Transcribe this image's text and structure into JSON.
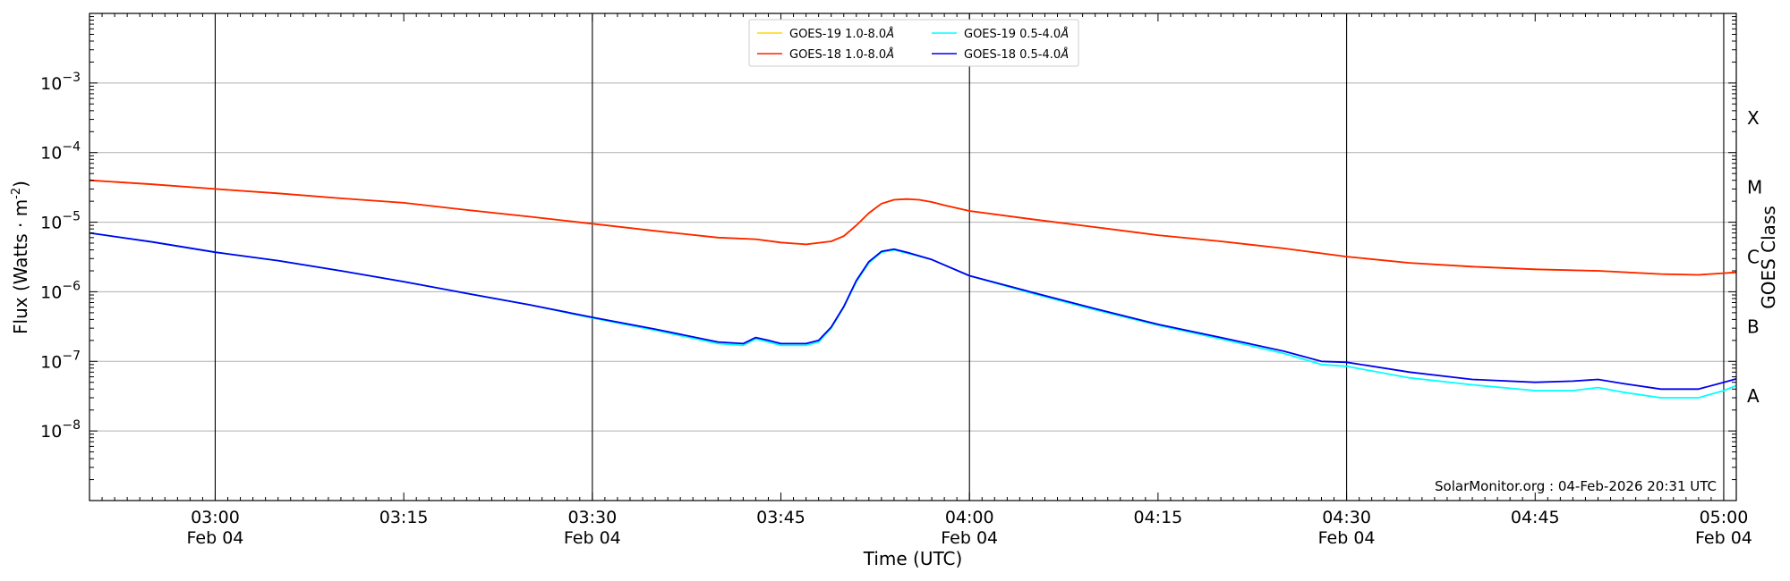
{
  "chart_data": {
    "type": "line",
    "xlabel": "Time (UTC)",
    "ylabel": "Flux (Watts · m",
    "ylabel_sup": "-2",
    "ylabel_end": ")",
    "right_label": "GOES Class",
    "y_scale": "log",
    "ylim": [
      1e-09,
      0.01
    ],
    "xlim": [
      "02:50",
      "05:01"
    ],
    "grid": {
      "horizontal": true,
      "vertical_at_labeled_half_hours": true
    },
    "x_ticks": [
      {
        "time": "03:00",
        "date": "Feb 04"
      },
      {
        "time": "03:15",
        "date": ""
      },
      {
        "time": "03:30",
        "date": "Feb 04"
      },
      {
        "time": "03:45",
        "date": ""
      },
      {
        "time": "04:00",
        "date": "Feb 04"
      },
      {
        "time": "04:15",
        "date": ""
      },
      {
        "time": "04:30",
        "date": "Feb 04"
      },
      {
        "time": "04:45",
        "date": ""
      },
      {
        "time": "05:00",
        "date": "Feb 04"
      }
    ],
    "vertical_lines": [
      "03:00",
      "03:30",
      "04:00",
      "04:30",
      "05:00"
    ],
    "y_ticks": [
      {
        "value": 0.001,
        "mantissa": "10",
        "exp": "−3"
      },
      {
        "value": 0.0001,
        "mantissa": "10",
        "exp": "−4"
      },
      {
        "value": 1e-05,
        "mantissa": "10",
        "exp": "−5"
      },
      {
        "value": 1e-06,
        "mantissa": "10",
        "exp": "−6"
      },
      {
        "value": 1e-07,
        "mantissa": "10",
        "exp": "−7"
      },
      {
        "value": 1e-08,
        "mantissa": "10",
        "exp": "−8"
      }
    ],
    "goes_classes": [
      {
        "label": "X",
        "value": 0.000316
      },
      {
        "label": "M",
        "value": 3.16e-05
      },
      {
        "label": "C",
        "value": 3.16e-06
      },
      {
        "label": "B",
        "value": 3.16e-07
      },
      {
        "label": "A",
        "value": 3.16e-08
      }
    ],
    "legend_placement": "top-center",
    "legend": [
      {
        "name": "GOES-19 1.0-8.0",
        "unit": "Å",
        "color": "#ffd700"
      },
      {
        "name": "GOES-19 0.5-4.0",
        "unit": "Å",
        "color": "#00ffff"
      },
      {
        "name": "GOES-18 1.0-8.0",
        "unit": "Å",
        "color": "#ff2200"
      },
      {
        "name": "GOES-18 0.5-4.0",
        "unit": "Å",
        "color": "#0000ee"
      }
    ],
    "credit": "SolarMonitor.org : 04-Feb-2026 20:31 UTC",
    "series": [
      {
        "name": "GOES-19 1.0-8.0Å",
        "color": "#ffd700",
        "points": [
          [
            "02:50",
            4e-05
          ],
          [
            "02:55",
            3.5e-05
          ],
          [
            "03:00",
            3e-05
          ],
          [
            "03:05",
            2.6e-05
          ],
          [
            "03:10",
            2.2e-05
          ],
          [
            "03:15",
            1.9e-05
          ],
          [
            "03:20",
            1.5e-05
          ],
          [
            "03:25",
            1.2e-05
          ],
          [
            "03:30",
            9.5e-06
          ],
          [
            "03:35",
            7.5e-06
          ],
          [
            "03:40",
            6e-06
          ],
          [
            "03:43",
            5.7e-06
          ],
          [
            "03:45",
            5.1e-06
          ],
          [
            "03:47",
            4.8e-06
          ],
          [
            "03:49",
            5.3e-06
          ],
          [
            "03:50",
            6.3e-06
          ],
          [
            "03:51",
            9e-06
          ],
          [
            "03:52",
            1.35e-05
          ],
          [
            "03:53",
            1.85e-05
          ],
          [
            "03:54",
            2.1e-05
          ],
          [
            "03:55",
            2.15e-05
          ],
          [
            "03:56",
            2.1e-05
          ],
          [
            "03:57",
            1.95e-05
          ],
          [
            "03:58",
            1.75e-05
          ],
          [
            "04:00",
            1.45e-05
          ],
          [
            "04:05",
            1.1e-05
          ],
          [
            "04:10",
            8.5e-06
          ],
          [
            "04:15",
            6.5e-06
          ],
          [
            "04:20",
            5.3e-06
          ],
          [
            "04:25",
            4.2e-06
          ],
          [
            "04:30",
            3.2e-06
          ],
          [
            "04:35",
            2.6e-06
          ],
          [
            "04:40",
            2.3e-06
          ],
          [
            "04:45",
            2.1e-06
          ],
          [
            "04:50",
            2e-06
          ],
          [
            "04:55",
            1.8e-06
          ],
          [
            "04:58",
            1.75e-06
          ],
          [
            "05:00",
            1.85e-06
          ],
          [
            "05:01",
            1.9e-06
          ]
        ]
      },
      {
        "name": "GOES-18 1.0-8.0Å",
        "color": "#ff2200",
        "points": [
          [
            "02:50",
            4e-05
          ],
          [
            "02:55",
            3.5e-05
          ],
          [
            "03:00",
            3e-05
          ],
          [
            "03:05",
            2.6e-05
          ],
          [
            "03:10",
            2.2e-05
          ],
          [
            "03:15",
            1.9e-05
          ],
          [
            "03:20",
            1.5e-05
          ],
          [
            "03:25",
            1.2e-05
          ],
          [
            "03:30",
            9.5e-06
          ],
          [
            "03:35",
            7.5e-06
          ],
          [
            "03:40",
            6e-06
          ],
          [
            "03:43",
            5.7e-06
          ],
          [
            "03:45",
            5.1e-06
          ],
          [
            "03:47",
            4.8e-06
          ],
          [
            "03:49",
            5.3e-06
          ],
          [
            "03:50",
            6.3e-06
          ],
          [
            "03:51",
            9e-06
          ],
          [
            "03:52",
            1.35e-05
          ],
          [
            "03:53",
            1.85e-05
          ],
          [
            "03:54",
            2.1e-05
          ],
          [
            "03:55",
            2.15e-05
          ],
          [
            "03:56",
            2.1e-05
          ],
          [
            "03:57",
            1.95e-05
          ],
          [
            "03:58",
            1.75e-05
          ],
          [
            "04:00",
            1.45e-05
          ],
          [
            "04:05",
            1.1e-05
          ],
          [
            "04:10",
            8.5e-06
          ],
          [
            "04:15",
            6.5e-06
          ],
          [
            "04:20",
            5.3e-06
          ],
          [
            "04:25",
            4.2e-06
          ],
          [
            "04:30",
            3.2e-06
          ],
          [
            "04:35",
            2.6e-06
          ],
          [
            "04:40",
            2.3e-06
          ],
          [
            "04:45",
            2.1e-06
          ],
          [
            "04:50",
            2e-06
          ],
          [
            "04:55",
            1.8e-06
          ],
          [
            "04:58",
            1.75e-06
          ],
          [
            "05:00",
            1.85e-06
          ],
          [
            "05:01",
            1.9e-06
          ]
        ]
      },
      {
        "name": "GOES-19 0.5-4.0Å",
        "color": "#00ffff",
        "points": [
          [
            "02:50",
            7e-06
          ],
          [
            "02:55",
            5.2e-06
          ],
          [
            "03:00",
            3.7e-06
          ],
          [
            "03:05",
            2.8e-06
          ],
          [
            "03:10",
            2e-06
          ],
          [
            "03:15",
            1.4e-06
          ],
          [
            "03:20",
            9.5e-07
          ],
          [
            "03:25",
            6.5e-07
          ],
          [
            "03:30",
            4.2e-07
          ],
          [
            "03:35",
            2.8e-07
          ],
          [
            "03:40",
            1.8e-07
          ],
          [
            "03:42",
            1.7e-07
          ],
          [
            "03:43",
            2.1e-07
          ],
          [
            "03:44",
            1.9e-07
          ],
          [
            "03:45",
            1.7e-07
          ],
          [
            "03:47",
            1.7e-07
          ],
          [
            "03:48",
            1.9e-07
          ],
          [
            "03:49",
            3e-07
          ],
          [
            "03:50",
            6e-07
          ],
          [
            "03:51",
            1.4e-06
          ],
          [
            "03:52",
            2.6e-06
          ],
          [
            "03:53",
            3.7e-06
          ],
          [
            "03:54",
            4e-06
          ],
          [
            "03:55",
            3.6e-06
          ],
          [
            "03:57",
            2.9e-06
          ],
          [
            "04:00",
            1.7e-06
          ],
          [
            "04:05",
            9.5e-07
          ],
          [
            "04:10",
            5.5e-07
          ],
          [
            "04:15",
            3.3e-07
          ],
          [
            "04:20",
            2.1e-07
          ],
          [
            "04:25",
            1.3e-07
          ],
          [
            "04:28",
            9e-08
          ],
          [
            "04:30",
            8.5e-08
          ],
          [
            "04:35",
            5.8e-08
          ],
          [
            "04:40",
            4.6e-08
          ],
          [
            "04:45",
            3.8e-08
          ],
          [
            "04:48",
            3.8e-08
          ],
          [
            "04:50",
            4.2e-08
          ],
          [
            "04:52",
            3.6e-08
          ],
          [
            "04:55",
            3e-08
          ],
          [
            "04:58",
            3e-08
          ],
          [
            "05:00",
            3.8e-08
          ],
          [
            "05:01",
            4.5e-08
          ]
        ]
      },
      {
        "name": "GOES-18 0.5-4.0Å",
        "color": "#0000ee",
        "points": [
          [
            "02:50",
            7e-06
          ],
          [
            "02:55",
            5.2e-06
          ],
          [
            "03:00",
            3.7e-06
          ],
          [
            "03:05",
            2.8e-06
          ],
          [
            "03:10",
            2e-06
          ],
          [
            "03:15",
            1.4e-06
          ],
          [
            "03:20",
            9.5e-07
          ],
          [
            "03:25",
            6.5e-07
          ],
          [
            "03:30",
            4.3e-07
          ],
          [
            "03:35",
            2.9e-07
          ],
          [
            "03:40",
            1.9e-07
          ],
          [
            "03:42",
            1.8e-07
          ],
          [
            "03:43",
            2.2e-07
          ],
          [
            "03:44",
            2e-07
          ],
          [
            "03:45",
            1.8e-07
          ],
          [
            "03:47",
            1.8e-07
          ],
          [
            "03:48",
            2e-07
          ],
          [
            "03:49",
            3.1e-07
          ],
          [
            "03:50",
            6.1e-07
          ],
          [
            "03:51",
            1.45e-06
          ],
          [
            "03:52",
            2.7e-06
          ],
          [
            "03:53",
            3.8e-06
          ],
          [
            "03:54",
            4.1e-06
          ],
          [
            "03:55",
            3.7e-06
          ],
          [
            "03:57",
            2.9e-06
          ],
          [
            "04:00",
            1.7e-06
          ],
          [
            "04:05",
            9.8e-07
          ],
          [
            "04:10",
            5.7e-07
          ],
          [
            "04:15",
            3.4e-07
          ],
          [
            "04:20",
            2.2e-07
          ],
          [
            "04:25",
            1.4e-07
          ],
          [
            "04:28",
            1e-07
          ],
          [
            "04:30",
            9.7e-08
          ],
          [
            "04:35",
            7e-08
          ],
          [
            "04:40",
            5.5e-08
          ],
          [
            "04:45",
            5e-08
          ],
          [
            "04:48",
            5.2e-08
          ],
          [
            "04:50",
            5.5e-08
          ],
          [
            "04:52",
            4.8e-08
          ],
          [
            "04:55",
            4e-08
          ],
          [
            "04:58",
            4e-08
          ],
          [
            "05:00",
            5e-08
          ],
          [
            "05:01",
            5.6e-08
          ]
        ]
      }
    ]
  }
}
